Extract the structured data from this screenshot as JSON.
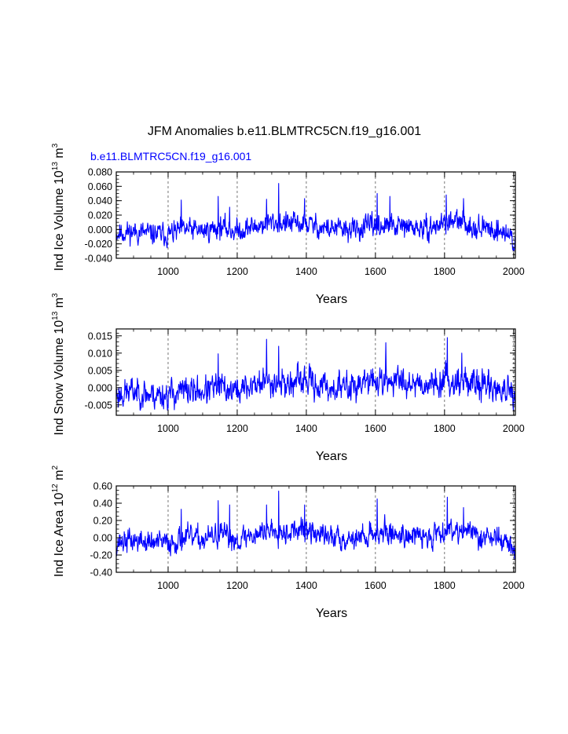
{
  "figure_title": "JFM Anomalies b.e11.BLMTRC5CN.f19_g16.001",
  "case_label": "b.e11.BLMTRC5CN.f19_g16.001",
  "colors": {
    "series": "#0000ff",
    "axes": "#000000",
    "grid": "#555555"
  },
  "chart_data": [
    {
      "type": "line",
      "title": "",
      "xlabel": "Years",
      "ylabel": {
        "prefix": "Ind Ice Volume 10",
        "exp": "13",
        "unit": " m",
        "unit_exp": "3"
      },
      "xlim": [
        850,
        2005
      ],
      "ylim": [
        -0.04,
        0.08
      ],
      "xticks": [
        1000,
        1200,
        1400,
        1600,
        1800,
        2000
      ],
      "xtick_labels": [
        "1000",
        "1200",
        "1400",
        "1600",
        "1800",
        "2000"
      ],
      "yticks": [
        -0.04,
        -0.02,
        0.0,
        0.02,
        0.04,
        0.06,
        0.08
      ],
      "ytick_labels": [
        "-0.040",
        "-0.020",
        "0.000",
        "0.020",
        "0.040",
        "0.060",
        "0.080"
      ],
      "grid": "vertical-dashed",
      "series": [
        {
          "name": "b.e11.BLMTRC5CN.f19_g16.001",
          "generator": {
            "seed": 11,
            "noise": 0.0085,
            "min": -0.03,
            "max": 0.065
          },
          "anchors": {
            "years": [
              850,
              900,
              950,
              1000,
              1050,
              1100,
              1150,
              1200,
              1250,
              1300,
              1350,
              1400,
              1450,
              1500,
              1550,
              1600,
              1650,
              1700,
              1750,
              1800,
              1850,
              1900,
              1950,
              1990,
              2005
            ],
            "values": [
              -0.005,
              -0.003,
              -0.006,
              -0.007,
              0.0,
              -0.002,
              0.003,
              -0.002,
              0.004,
              0.01,
              0.008,
              0.008,
              0.002,
              0.0,
              0.0,
              0.006,
              0.004,
              0.003,
              0.0,
              0.01,
              0.01,
              0.002,
              0.0,
              -0.008,
              -0.022
            ]
          },
          "spikes": [
            [
              1038,
              0.041
            ],
            [
              1145,
              0.046
            ],
            [
              1178,
              0.031
            ],
            [
              1285,
              0.042
            ],
            [
              1320,
              0.064
            ],
            [
              1395,
              0.043
            ],
            [
              1605,
              0.05
            ],
            [
              1642,
              0.046
            ],
            [
              1805,
              0.048
            ],
            [
              1855,
              0.043
            ]
          ]
        }
      ]
    },
    {
      "type": "line",
      "title": "",
      "xlabel": "Years",
      "ylabel": {
        "prefix": "Ind Snow Volume 10",
        "exp": "13",
        "unit": " m",
        "unit_exp": "3"
      },
      "xlim": [
        850,
        2005
      ],
      "ylim": [
        -0.008,
        0.017
      ],
      "xticks": [
        1000,
        1200,
        1400,
        1600,
        1800,
        2000
      ],
      "xtick_labels": [
        "1000",
        "1200",
        "1400",
        "1600",
        "1800",
        "2000"
      ],
      "yticks": [
        -0.005,
        0.0,
        0.005,
        0.01,
        0.015
      ],
      "ytick_labels": [
        "-0.005",
        "0.000",
        "0.005",
        "0.010",
        "0.015"
      ],
      "grid": "vertical-dashed",
      "series": [
        {
          "name": "b.e11.BLMTRC5CN.f19_g16.001",
          "generator": {
            "seed": 23,
            "noise": 0.0023,
            "min": -0.0065,
            "max": 0.0145
          },
          "anchors": {
            "years": [
              850,
              900,
              950,
              1000,
              1050,
              1100,
              1150,
              1200,
              1250,
              1300,
              1350,
              1400,
              1450,
              1500,
              1550,
              1600,
              1650,
              1700,
              1750,
              1800,
              1850,
              1900,
              1950,
              1990,
              2005
            ],
            "values": [
              -0.002,
              -0.001,
              -0.002,
              -0.002,
              -0.001,
              -0.001,
              0.0,
              -0.001,
              0.001,
              0.002,
              0.001,
              0.002,
              0.0,
              0.0,
              0.001,
              0.002,
              0.002,
              0.002,
              0.001,
              0.002,
              0.002,
              0.001,
              0.0,
              -0.002,
              -0.005
            ]
          },
          "spikes": [
            [
              1145,
              0.0098
            ],
            [
              1285,
              0.014
            ],
            [
              1320,
              0.012
            ],
            [
              1630,
              0.013
            ],
            [
              1808,
              0.0145
            ],
            [
              1850,
              0.01
            ]
          ]
        }
      ]
    },
    {
      "type": "line",
      "title": "",
      "xlabel": "Years",
      "ylabel": {
        "prefix": "Ind Ice Area 10",
        "exp": "12",
        "unit": " m",
        "unit_exp": "2"
      },
      "xlim": [
        850,
        2005
      ],
      "ylim": [
        -0.4,
        0.6
      ],
      "xticks": [
        1000,
        1200,
        1400,
        1600,
        1800,
        2000
      ],
      "xtick_labels": [
        "1000",
        "1200",
        "1400",
        "1600",
        "1800",
        "2000"
      ],
      "yticks": [
        -0.4,
        -0.2,
        0.0,
        0.2,
        0.4,
        0.6
      ],
      "ytick_labels": [
        "-0.40",
        "-0.20",
        "0.00",
        "0.20",
        "0.40",
        "0.60"
      ],
      "grid": "vertical-dashed",
      "series": [
        {
          "name": "b.e11.BLMTRC5CN.f19_g16.001",
          "generator": {
            "seed": 37,
            "noise": 0.075,
            "min": -0.27,
            "max": 0.54
          },
          "anchors": {
            "years": [
              850,
              900,
              950,
              1000,
              1050,
              1100,
              1150,
              1200,
              1250,
              1300,
              1350,
              1400,
              1450,
              1500,
              1550,
              1600,
              1650,
              1700,
              1750,
              1800,
              1850,
              1900,
              1950,
              1990,
              2005
            ],
            "values": [
              -0.05,
              -0.03,
              -0.06,
              -0.06,
              0.0,
              -0.02,
              0.03,
              -0.02,
              0.04,
              0.1,
              0.08,
              0.08,
              0.02,
              0.0,
              0.0,
              0.06,
              0.05,
              0.03,
              0.0,
              0.1,
              0.1,
              0.02,
              0.0,
              -0.08,
              -0.2
            ]
          },
          "spikes": [
            [
              1038,
              0.33
            ],
            [
              1145,
              0.43
            ],
            [
              1178,
              0.38
            ],
            [
              1285,
              0.38
            ],
            [
              1320,
              0.54
            ],
            [
              1395,
              0.38
            ],
            [
              1605,
              0.45
            ],
            [
              1808,
              0.47
            ],
            [
              1855,
              0.35
            ]
          ]
        }
      ]
    }
  ]
}
